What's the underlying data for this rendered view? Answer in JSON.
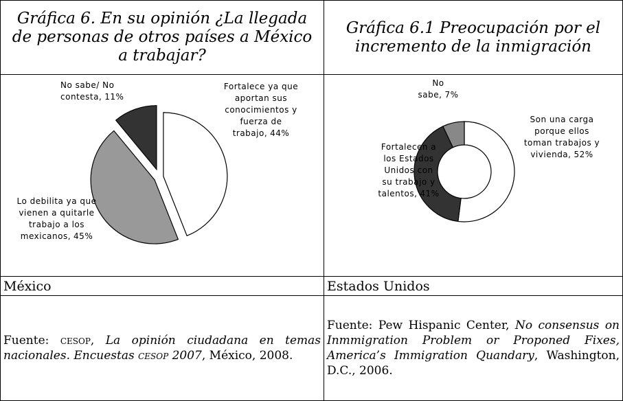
{
  "headers": [
    "Gráfica 6. En su opinión ¿La llegada de personas de otros países a México a trabajar?",
    "Gráfica 6.1 Preocupación por el incremento de la inmigración"
  ],
  "chart_data": [
    {
      "type": "pie",
      "categories": [
        "Fortalece ya que aportan sus conocimientos y fuerza de trabajo,",
        "Lo debilita ya que vienen a quitarle trabajo a los mexicanos,",
        "No sabe/ No contesta,"
      ],
      "values": [
        44,
        45,
        11
      ],
      "value_labels": [
        "44%",
        "45%",
        "11%"
      ],
      "colors": [
        "#ffffff",
        "#999999",
        "#333333"
      ]
    },
    {
      "type": "donut",
      "categories": [
        "Son una carga porque ellos toman trabajos y vivienda,",
        "Fortalecen a los Estados Unidos con su trabajo y talentos,",
        "No sabe,"
      ],
      "values": [
        52,
        41,
        7
      ],
      "value_labels": [
        "52%",
        "41%",
        "7%"
      ],
      "colors": [
        "#ffffff",
        "#333333",
        "#888888"
      ]
    }
  ],
  "countries": [
    "México",
    "Estados Unidos"
  ],
  "sources": [
    [
      {
        "text": "Fuente: "
      },
      {
        "text": "cesop",
        "smallcaps": true
      },
      {
        "text": ", "
      },
      {
        "text": "La opinión ciudadana en temas nacionales. Encuestas ",
        "italic": true
      },
      {
        "text": "cesop",
        "smallcaps": true,
        "italic": true
      },
      {
        "text": " 2007",
        "italic": true
      },
      {
        "text": ", México, 2008."
      }
    ],
    [
      {
        "text": "Fuente: Pew Hispanic Center, "
      },
      {
        "text": "No consensus on Inmmigration Problem or Proponed Fixes, America’s Immigration Quandary",
        "italic": true
      },
      {
        "text": ", Washington, D.C., 2006."
      }
    ]
  ]
}
